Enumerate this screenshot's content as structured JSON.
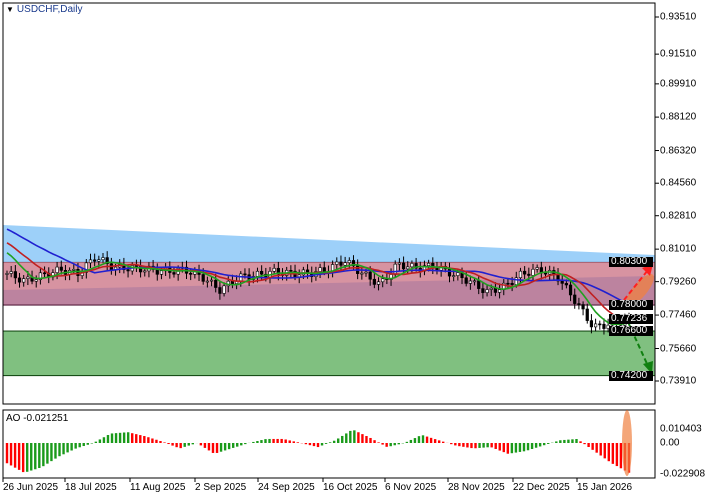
{
  "chart_data": {
    "type": "candlestick",
    "symbol_title": "USDCHF,Daily",
    "price_ticks": [
      "0.93510",
      "0.91510",
      "0.89910",
      "0.88120",
      "0.86320",
      "0.84560",
      "0.82810",
      "0.81010",
      "0.79260",
      "0.77460",
      "0.75660",
      "0.73910"
    ],
    "price_range": [
      0.7391,
      0.9351
    ],
    "price_labels": [
      {
        "text": "0.80300",
        "value": 0.803
      },
      {
        "text": "0.78000",
        "value": 0.78
      },
      {
        "text": "0.77236",
        "value": 0.77236
      },
      {
        "text": "0.76600",
        "value": 0.766
      },
      {
        "text": "0.74200",
        "value": 0.742
      }
    ],
    "resistance_zone": [
      0.78,
      0.803
    ],
    "support_zone": [
      0.742,
      0.766
    ],
    "x_labels": [
      "26 Jun 2025",
      "18 Jul 2025",
      "11 Aug 2025",
      "2 Sep 2025",
      "24 Sep 2025",
      "16 Oct 2025",
      "6 Nov 2025",
      "28 Nov 2025",
      "22 Dec 2025",
      "15 Jan 2026"
    ],
    "close_keypoints": [
      0.797,
      0.793,
      0.796,
      0.799,
      0.797,
      0.806,
      0.8,
      0.8,
      0.799,
      0.798,
      0.799,
      0.795,
      0.788,
      0.795,
      0.796,
      0.798,
      0.797,
      0.797,
      0.799,
      0.804,
      0.797,
      0.791,
      0.802,
      0.8,
      0.801,
      0.797,
      0.793,
      0.787,
      0.79,
      0.797,
      0.799,
      0.795,
      0.782,
      0.768,
      0.77,
      0.772
    ],
    "ma_colors": {
      "slow": "#2020d0",
      "medium": "#c02020",
      "fast": "#20a020"
    },
    "indicator": {
      "label": "AO -0.021251",
      "ticks": [
        "0.010403",
        "0.00",
        "-0.022908"
      ],
      "range": [
        -0.022908,
        0.010403
      ],
      "keypoints": [
        -0.015,
        -0.022,
        -0.018,
        -0.01,
        -0.004,
        0.0,
        0.007,
        0.008,
        0.005,
        0.001,
        -0.004,
        0.0,
        -0.008,
        -0.004,
        0.0,
        0.003,
        0.003,
        0.0,
        -0.003,
        0.002,
        0.01,
        0.004,
        -0.003,
        0.0,
        0.006,
        0.002,
        -0.002,
        -0.004,
        -0.003,
        -0.008,
        -0.006,
        -0.002,
        0.002,
        0.003,
        -0.006,
        -0.015,
        -0.022
      ],
      "up_color": "#1a9a1a",
      "down_color": "#ff0000"
    },
    "forecast": {
      "up_arrow_color": "#ff2020",
      "down_arrow_color": "#108010"
    }
  }
}
